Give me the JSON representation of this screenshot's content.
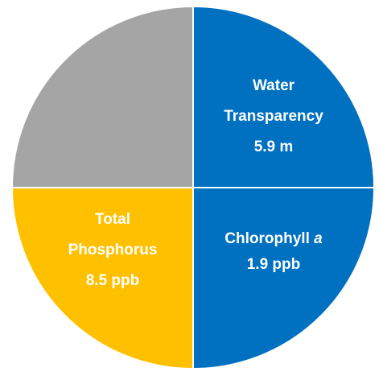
{
  "quadrants": [
    {
      "color": "#a5a5a5",
      "lines": []
    },
    {
      "color": "#0070c0",
      "lines": [
        {
          "text": "Water"
        },
        {
          "text": "Transparency"
        },
        {
          "text": "5.9 m"
        }
      ]
    },
    {
      "color": "#0070c0",
      "lines": [
        {
          "text": "Chlorophyll ",
          "em": "a"
        },
        {
          "text": "1.9 ppb"
        }
      ]
    },
    {
      "color": "#ffc000",
      "lines": [
        {
          "text": "Total"
        },
        {
          "text": "Phosphorus"
        },
        {
          "text": "8.5 ppb"
        }
      ]
    }
  ]
}
